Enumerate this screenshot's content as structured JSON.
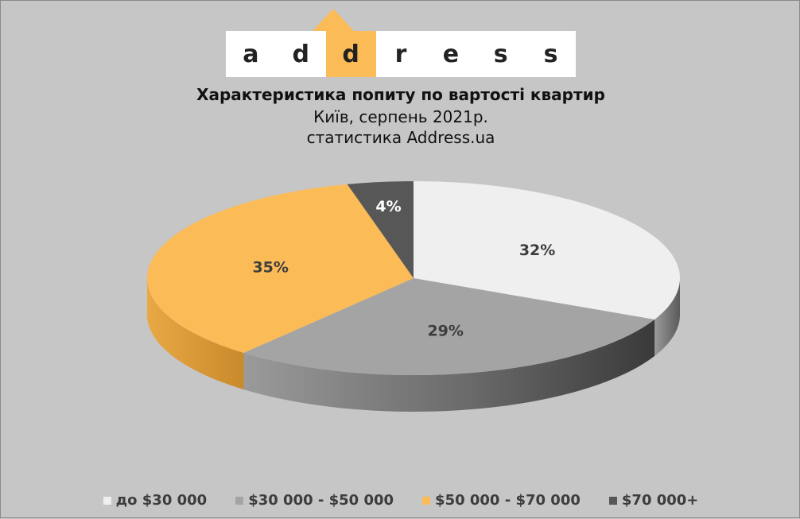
{
  "logo": {
    "letters": [
      "a",
      "d",
      "d",
      "r",
      "e",
      "s",
      "s"
    ],
    "highlight_index": 2,
    "color": "#fbbb57"
  },
  "title": "Характеристика попиту по вартості квартир",
  "subtitle_line1": "Київ, серпень 2021р.",
  "subtitle_line2": "статистика Address.ua",
  "chart_data": {
    "type": "pie",
    "title": "Характеристика попиту по вартості квартир",
    "categories": [
      "до $30 000",
      "$30 000 - $50 000",
      "$50 000 - $70 000",
      "$70 000+"
    ],
    "values": [
      32,
      29,
      35,
      4
    ],
    "labels": [
      "32%",
      "29%",
      "35%",
      "4%"
    ],
    "colors": [
      "#efefef",
      "#a4a4a4",
      "#fbbb57",
      "#575757"
    ],
    "label_colors": [
      "#3d3d3d",
      "#3d3d3d",
      "#3d3d3d",
      "#ffffff"
    ],
    "style": "3d",
    "legend_position": "bottom"
  },
  "legend": {
    "items": [
      {
        "label": "до $30 000",
        "color": "#efefef"
      },
      {
        "label": "$30 000 - $50 000",
        "color": "#a4a4a4"
      },
      {
        "label": "$50 000 - $70 000",
        "color": "#fbbb57"
      },
      {
        "label": "$70 000+",
        "color": "#575757"
      }
    ]
  }
}
